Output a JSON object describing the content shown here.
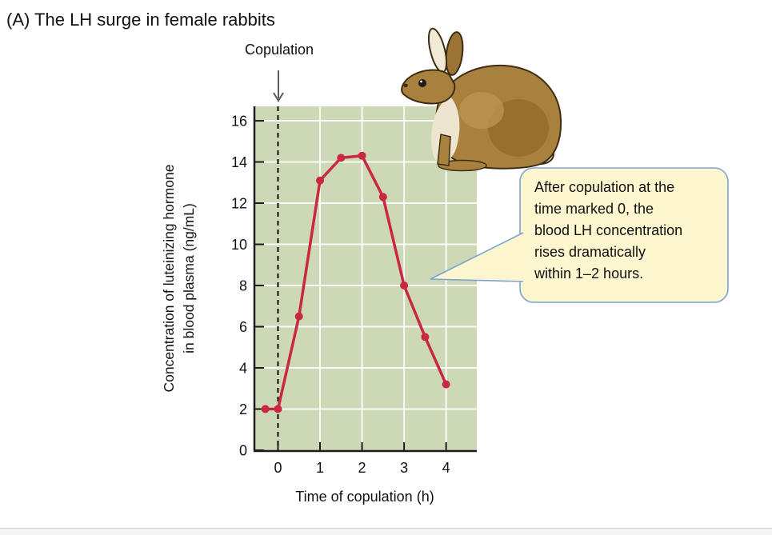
{
  "figure": {
    "title": "(A) The LH surge in female rabbits"
  },
  "chart_data": {
    "type": "line",
    "title": "(A) The LH surge in female rabbits",
    "xlabel": "Time of copulation (h)",
    "ylabel": "Concentration of luteinizing hormone\nin blood plasma (ng/mL)",
    "x": [
      -0.3,
      0,
      0.5,
      1,
      1.5,
      2,
      2.5,
      3,
      3.5,
      4
    ],
    "y": [
      2.0,
      2.0,
      6.5,
      13.1,
      14.2,
      14.3,
      12.3,
      8.0,
      5.5,
      3.2
    ],
    "x_ticks": [
      0,
      1,
      2,
      3,
      4
    ],
    "y_ticks": [
      0,
      2,
      4,
      6,
      8,
      10,
      12,
      14,
      16
    ],
    "xlim": [
      -0.58,
      4.73
    ],
    "ylim": [
      0,
      16.7
    ],
    "grid": true,
    "annotation": {
      "label": "Copulation",
      "x": 0
    },
    "colors": {
      "series": "#C92840",
      "plot_bg": "#CDD9B6",
      "gridline": "#ffffff",
      "axis": "#1c1c1c",
      "arrow": "#5a5a5a"
    }
  },
  "callout": {
    "text": "After copulation at the\ntime marked 0, the\nblood LH concentration\nrises dramatically\nwithin 1–2 hours.",
    "fill": "#FDF6CE",
    "border": "#79A3D6"
  }
}
